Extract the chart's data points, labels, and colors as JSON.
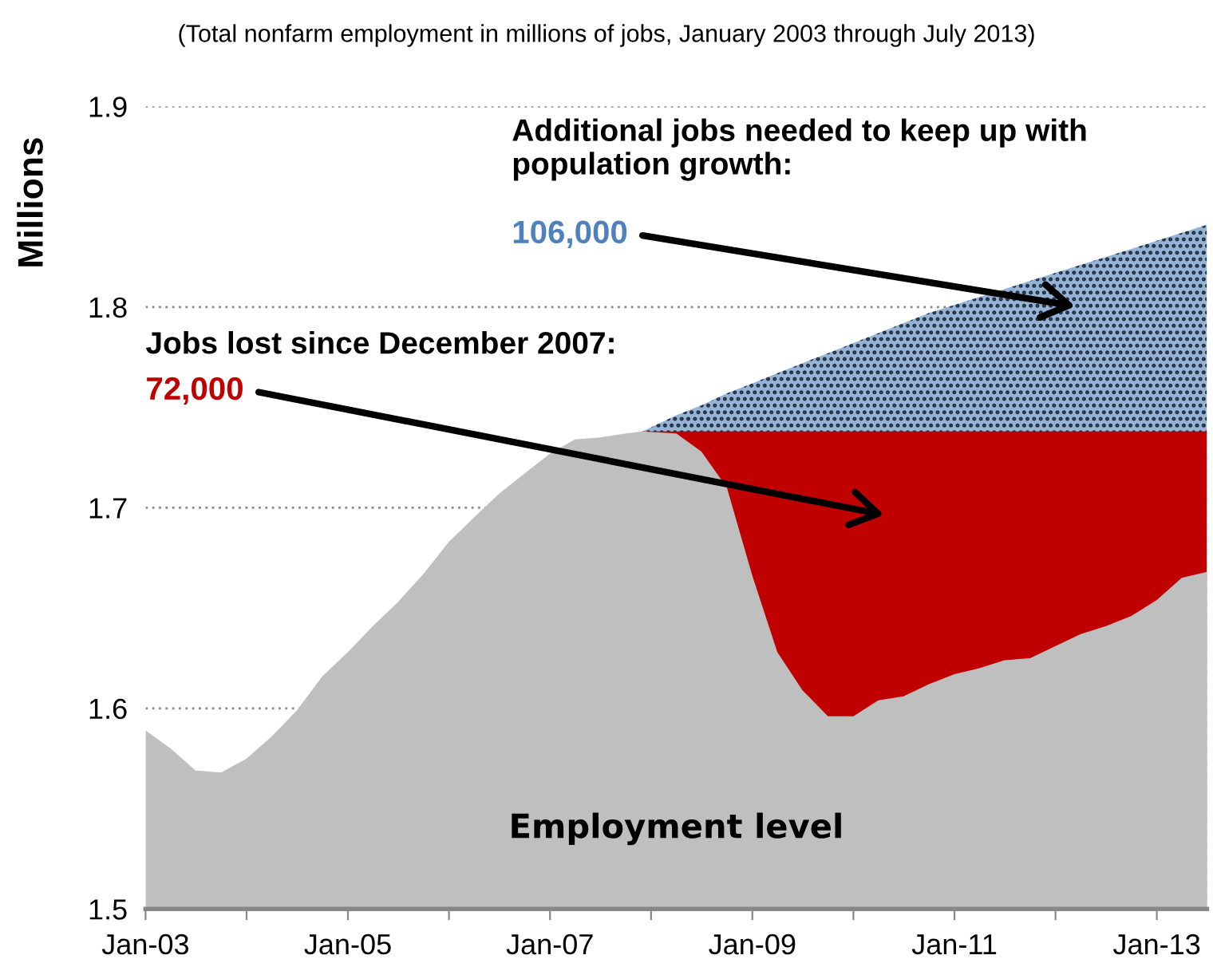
{
  "chart_data": {
    "type": "area",
    "subtitle": "(Total nonfarm employment in millions of jobs, January 2003 through July 2013)",
    "ylabel": "Millions",
    "x": [
      "2003-01",
      "2003-04",
      "2003-07",
      "2003-10",
      "2004-01",
      "2004-04",
      "2004-07",
      "2004-10",
      "2005-01",
      "2005-04",
      "2005-07",
      "2005-10",
      "2006-01",
      "2006-04",
      "2006-07",
      "2006-10",
      "2007-01",
      "2007-04",
      "2007-07",
      "2007-10",
      "2007-12",
      "2008-04",
      "2008-07",
      "2008-10",
      "2009-01",
      "2009-04",
      "2009-07",
      "2009-10",
      "2010-01",
      "2010-04",
      "2010-07",
      "2010-10",
      "2011-01",
      "2011-04",
      "2011-07",
      "2011-10",
      "2012-01",
      "2012-04",
      "2012-07",
      "2012-10",
      "2013-01",
      "2013-04",
      "2013-07"
    ],
    "series": [
      {
        "name": "Additional jobs needed to keep up with population growth:",
        "color": "#95b3d7",
        "values": [
          null,
          null,
          null,
          null,
          null,
          null,
          null,
          null,
          null,
          null,
          null,
          null,
          null,
          null,
          null,
          null,
          null,
          null,
          null,
          null,
          1.738,
          1.746,
          1.751,
          1.757,
          1.762,
          1.767,
          1.772,
          1.777,
          1.782,
          1.787,
          1.792,
          1.797,
          1.801,
          1.805,
          1.809,
          1.813,
          1.817,
          1.821,
          1.825,
          1.829,
          1.833,
          1.837,
          1.841
        ]
      },
      {
        "name": "Jobs lost since December 2007:",
        "color": "#c00000",
        "values": [
          null,
          null,
          null,
          null,
          null,
          null,
          null,
          null,
          null,
          null,
          null,
          null,
          null,
          null,
          null,
          null,
          null,
          null,
          null,
          null,
          1.738,
          1.738,
          1.738,
          1.738,
          1.738,
          1.738,
          1.738,
          1.738,
          1.738,
          1.738,
          1.738,
          1.738,
          1.738,
          1.738,
          1.738,
          1.738,
          1.738,
          1.738,
          1.738,
          1.738,
          1.738,
          1.738,
          1.738
        ]
      },
      {
        "name": "Employment level",
        "color": "#bfbfbf",
        "values": [
          1.589,
          1.58,
          1.569,
          1.568,
          1.575,
          1.586,
          1.599,
          1.616,
          1.628,
          1.641,
          1.653,
          1.667,
          1.683,
          1.695,
          1.707,
          1.717,
          1.727,
          1.734,
          1.735,
          1.737,
          1.738,
          1.737,
          1.728,
          1.71,
          1.666,
          1.628,
          1.609,
          1.596,
          1.596,
          1.604,
          1.606,
          1.612,
          1.617,
          1.62,
          1.624,
          1.625,
          1.631,
          1.637,
          1.641,
          1.646,
          1.654,
          1.665,
          1.668
        ]
      }
    ],
    "annotations": [
      "106,000",
      "72,000"
    ],
    "xlim": [
      "2003-01",
      "2013-07"
    ],
    "xticks": [
      {
        "value": "2003-01",
        "label": "Jan-03"
      },
      {
        "value": "2004-01",
        "label": null
      },
      {
        "value": "2005-01",
        "label": "Jan-05"
      },
      {
        "value": "2006-01",
        "label": null
      },
      {
        "value": "2007-01",
        "label": "Jan-07"
      },
      {
        "value": "2008-01",
        "label": null
      },
      {
        "value": "2009-01",
        "label": "Jan-09"
      },
      {
        "value": "2010-01",
        "label": null
      },
      {
        "value": "2011-01",
        "label": "Jan-11"
      },
      {
        "value": "2012-01",
        "label": null
      },
      {
        "value": "2013-01",
        "label": "Jan-13"
      }
    ],
    "ylim": [
      1.5,
      1.9
    ],
    "yticks": [
      1.5,
      1.6,
      1.7,
      1.8,
      1.9
    ],
    "grid": "y",
    "legend": false
  }
}
